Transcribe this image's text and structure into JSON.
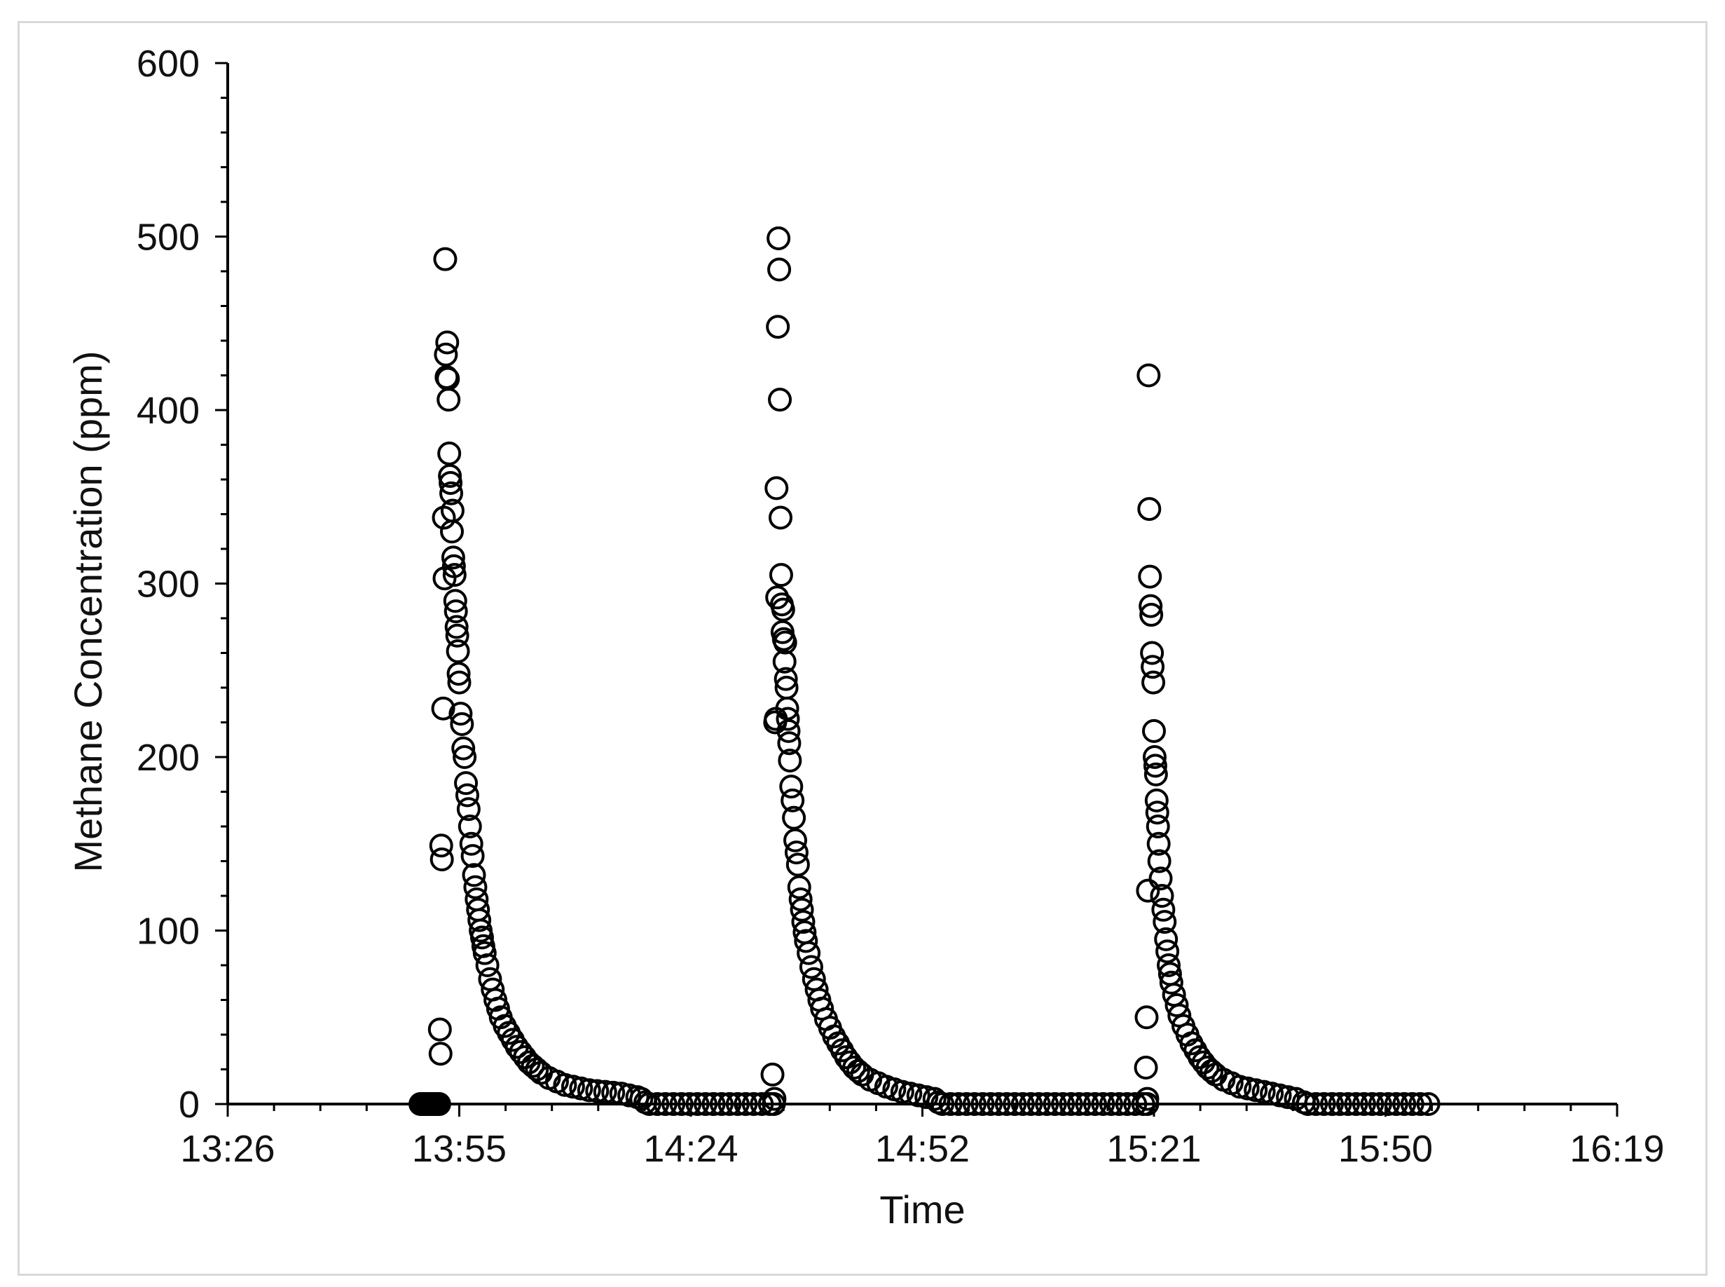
{
  "chart_data": {
    "type": "scatter",
    "title": "",
    "xlabel": "Time",
    "ylabel": "Methane Concentration (ppm)",
    "x_axis": {
      "min": "13:26",
      "max": "16:19",
      "ticks": [
        "13:26",
        "13:55",
        "14:24",
        "14:52",
        "15:21",
        "15:50",
        "16:19"
      ]
    },
    "y_axis": {
      "min": 0,
      "max": 600,
      "ticks": [
        0,
        100,
        200,
        300,
        400,
        500,
        600
      ]
    },
    "grid": false,
    "legend": "none",
    "marker": {
      "shape": "open-circle",
      "color": "#000000"
    },
    "series": [
      {
        "points": [
          [
            "13:50:00",
            0
          ],
          [
            "13:50:10",
            0
          ],
          [
            "13:50:20",
            0
          ],
          [
            "13:50:30",
            0
          ],
          [
            "13:50:40",
            0
          ],
          [
            "13:50:50",
            0
          ],
          [
            "13:51:00",
            0
          ],
          [
            "13:51:10",
            0
          ],
          [
            "13:51:20",
            0
          ],
          [
            "13:51:30",
            0
          ],
          [
            "13:51:40",
            0
          ],
          [
            "13:51:50",
            0
          ],
          [
            "13:52:00",
            0
          ],
          [
            "13:52:10",
            0
          ],
          [
            "13:52:20",
            0
          ],
          [
            "13:52:25",
            43
          ],
          [
            "13:52:30",
            29
          ],
          [
            "13:52:35",
            149
          ],
          [
            "13:52:40",
            141
          ],
          [
            "13:52:50",
            228
          ],
          [
            "13:52:55",
            338
          ],
          [
            "13:53:00",
            303
          ],
          [
            "13:53:05",
            487
          ],
          [
            "13:53:10",
            432
          ],
          [
            "13:53:15",
            419
          ],
          [
            "13:53:20",
            439
          ],
          [
            "13:53:25",
            418
          ],
          [
            "13:53:30",
            406
          ],
          [
            "13:53:35",
            375
          ],
          [
            "13:53:40",
            362
          ],
          [
            "13:53:45",
            358
          ],
          [
            "13:53:50",
            352
          ],
          [
            "13:53:55",
            330
          ],
          [
            "13:54:00",
            342
          ],
          [
            "13:54:05",
            315
          ],
          [
            "13:54:10",
            310
          ],
          [
            "13:54:15",
            305
          ],
          [
            "13:54:20",
            290
          ],
          [
            "13:54:25",
            284
          ],
          [
            "13:54:30",
            275
          ],
          [
            "13:54:35",
            270
          ],
          [
            "13:54:40",
            261
          ],
          [
            "13:54:45",
            248
          ],
          [
            "13:54:50",
            243
          ],
          [
            "13:55:00",
            225
          ],
          [
            "13:55:10",
            219
          ],
          [
            "13:55:20",
            205
          ],
          [
            "13:55:30",
            200
          ],
          [
            "13:55:40",
            185
          ],
          [
            "13:55:50",
            178
          ],
          [
            "13:56:00",
            170
          ],
          [
            "13:56:10",
            160
          ],
          [
            "13:56:20",
            150
          ],
          [
            "13:56:30",
            143
          ],
          [
            "13:56:40",
            132
          ],
          [
            "13:56:50",
            125
          ],
          [
            "13:57:00",
            118
          ],
          [
            "13:57:10",
            112
          ],
          [
            "13:57:20",
            106
          ],
          [
            "13:57:30",
            100
          ],
          [
            "13:57:40",
            96
          ],
          [
            "13:57:50",
            91
          ],
          [
            "13:58:00",
            87
          ],
          [
            "13:58:20",
            80
          ],
          [
            "13:58:40",
            72
          ],
          [
            "13:59:00",
            66
          ],
          [
            "13:59:20",
            60
          ],
          [
            "13:59:40",
            55
          ],
          [
            "14:00:00",
            50
          ],
          [
            "14:00:30",
            45
          ],
          [
            "14:01:00",
            41
          ],
          [
            "14:01:30",
            37
          ],
          [
            "14:02:00",
            33
          ],
          [
            "14:02:30",
            30
          ],
          [
            "14:03:00",
            27
          ],
          [
            "14:03:30",
            24
          ],
          [
            "14:04:00",
            22
          ],
          [
            "14:04:30",
            20
          ],
          [
            "14:05:00",
            18
          ],
          [
            "14:06:00",
            15
          ],
          [
            "14:07:00",
            13
          ],
          [
            "14:08:00",
            11
          ],
          [
            "14:09:00",
            10
          ],
          [
            "14:10:00",
            9
          ],
          [
            "14:11:00",
            8
          ],
          [
            "14:12:00",
            7.5
          ],
          [
            "14:13:00",
            7
          ],
          [
            "14:14:00",
            6.5
          ],
          [
            "14:15:00",
            6
          ],
          [
            "14:16:00",
            5
          ],
          [
            "14:17:00",
            4
          ],
          [
            "14:17:30",
            3
          ],
          [
            "14:18:00",
            1
          ],
          [
            "14:18:30",
            0
          ],
          [
            "14:19:30",
            0
          ],
          [
            "14:20:30",
            0
          ],
          [
            "14:21:30",
            0
          ],
          [
            "14:22:30",
            0
          ],
          [
            "14:23:30",
            0
          ],
          [
            "14:24:30",
            0
          ],
          [
            "14:25:30",
            0
          ],
          [
            "14:26:30",
            0
          ],
          [
            "14:27:30",
            0
          ],
          [
            "14:28:30",
            0
          ],
          [
            "14:29:30",
            0
          ],
          [
            "14:30:30",
            0
          ],
          [
            "14:31:30",
            0
          ],
          [
            "14:32:30",
            0
          ],
          [
            "14:33:30",
            0
          ],
          [
            "14:34:00",
            0
          ],
          [
            "14:33:50",
            17
          ],
          [
            "14:34:05",
            3
          ],
          [
            "14:34:10",
            220
          ],
          [
            "14:34:15",
            222
          ],
          [
            "14:34:20",
            355
          ],
          [
            "14:34:25",
            292
          ],
          [
            "14:34:30",
            448
          ],
          [
            "14:34:35",
            499
          ],
          [
            "14:34:40",
            481
          ],
          [
            "14:34:45",
            406
          ],
          [
            "14:34:50",
            338
          ],
          [
            "14:34:55",
            305
          ],
          [
            "14:35:00",
            288
          ],
          [
            "14:35:05",
            272
          ],
          [
            "14:35:10",
            285
          ],
          [
            "14:35:15",
            268
          ],
          [
            "14:35:20",
            255
          ],
          [
            "14:35:25",
            266
          ],
          [
            "14:35:30",
            245
          ],
          [
            "14:35:35",
            240
          ],
          [
            "14:35:40",
            228
          ],
          [
            "14:35:45",
            222
          ],
          [
            "14:35:50",
            215
          ],
          [
            "14:35:55",
            208
          ],
          [
            "14:36:00",
            198
          ],
          [
            "14:36:10",
            183
          ],
          [
            "14:36:20",
            175
          ],
          [
            "14:36:30",
            165
          ],
          [
            "14:36:40",
            152
          ],
          [
            "14:36:50",
            145
          ],
          [
            "14:37:00",
            138
          ],
          [
            "14:37:10",
            125
          ],
          [
            "14:37:20",
            118
          ],
          [
            "14:37:30",
            112
          ],
          [
            "14:37:40",
            105
          ],
          [
            "14:37:50",
            99
          ],
          [
            "14:38:00",
            94
          ],
          [
            "14:38:20",
            87
          ],
          [
            "14:38:40",
            79
          ],
          [
            "14:39:00",
            72
          ],
          [
            "14:39:20",
            66
          ],
          [
            "14:39:40",
            60
          ],
          [
            "14:40:00",
            55
          ],
          [
            "14:40:30",
            49
          ],
          [
            "14:41:00",
            44
          ],
          [
            "14:41:30",
            39
          ],
          [
            "14:42:00",
            35
          ],
          [
            "14:42:30",
            31
          ],
          [
            "14:43:00",
            27
          ],
          [
            "14:43:30",
            24
          ],
          [
            "14:44:00",
            21
          ],
          [
            "14:44:30",
            19
          ],
          [
            "14:45:00",
            17
          ],
          [
            "14:46:00",
            14
          ],
          [
            "14:47:00",
            12
          ],
          [
            "14:48:00",
            10
          ],
          [
            "14:49:00",
            8.5
          ],
          [
            "14:50:00",
            7
          ],
          [
            "14:51:00",
            6
          ],
          [
            "14:52:00",
            5
          ],
          [
            "14:53:00",
            4
          ],
          [
            "14:54:00",
            3
          ],
          [
            "14:54:30",
            1
          ],
          [
            "14:55:00",
            0
          ],
          [
            "14:56:00",
            0
          ],
          [
            "14:57:00",
            0
          ],
          [
            "14:58:00",
            0
          ],
          [
            "14:59:00",
            0
          ],
          [
            "15:00:00",
            0
          ],
          [
            "15:01:00",
            0
          ],
          [
            "15:02:00",
            0
          ],
          [
            "15:03:00",
            0
          ],
          [
            "15:04:00",
            0
          ],
          [
            "15:05:00",
            0
          ],
          [
            "15:06:00",
            0
          ],
          [
            "15:07:00",
            0
          ],
          [
            "15:08:00",
            0
          ],
          [
            "15:09:00",
            0
          ],
          [
            "15:10:00",
            0
          ],
          [
            "15:11:00",
            0
          ],
          [
            "15:12:00",
            0
          ],
          [
            "15:13:00",
            0
          ],
          [
            "15:14:00",
            0
          ],
          [
            "15:15:00",
            0
          ],
          [
            "15:16:00",
            0
          ],
          [
            "15:17:00",
            0
          ],
          [
            "15:18:00",
            0
          ],
          [
            "15:19:00",
            0
          ],
          [
            "15:20:00",
            0
          ],
          [
            "15:20:30",
            0
          ],
          [
            "15:20:20",
            21
          ],
          [
            "15:20:25",
            50
          ],
          [
            "15:20:30",
            3
          ],
          [
            "15:20:35",
            123
          ],
          [
            "15:20:40",
            420
          ],
          [
            "15:20:45",
            343
          ],
          [
            "15:20:50",
            304
          ],
          [
            "15:20:55",
            287
          ],
          [
            "15:21:00",
            282
          ],
          [
            "15:21:05",
            260
          ],
          [
            "15:21:10",
            252
          ],
          [
            "15:21:15",
            243
          ],
          [
            "15:21:20",
            215
          ],
          [
            "15:21:25",
            200
          ],
          [
            "15:21:30",
            195
          ],
          [
            "15:21:35",
            190
          ],
          [
            "15:21:40",
            175
          ],
          [
            "15:21:45",
            168
          ],
          [
            "15:21:50",
            160
          ],
          [
            "15:21:55",
            150
          ],
          [
            "15:22:00",
            140
          ],
          [
            "15:22:10",
            130
          ],
          [
            "15:22:20",
            120
          ],
          [
            "15:22:30",
            112
          ],
          [
            "15:22:40",
            105
          ],
          [
            "15:22:50",
            95
          ],
          [
            "15:23:00",
            88
          ],
          [
            "15:23:10",
            80
          ],
          [
            "15:23:20",
            75
          ],
          [
            "15:23:30",
            70
          ],
          [
            "15:23:50",
            63
          ],
          [
            "15:24:10",
            57
          ],
          [
            "15:24:30",
            51
          ],
          [
            "15:25:00",
            45
          ],
          [
            "15:25:30",
            40
          ],
          [
            "15:26:00",
            35
          ],
          [
            "15:26:30",
            31
          ],
          [
            "15:27:00",
            27
          ],
          [
            "15:27:30",
            24
          ],
          [
            "15:28:00",
            21
          ],
          [
            "15:28:30",
            19
          ],
          [
            "15:29:00",
            17
          ],
          [
            "15:30:00",
            14
          ],
          [
            "15:31:00",
            12
          ],
          [
            "15:32:00",
            10
          ],
          [
            "15:33:00",
            9
          ],
          [
            "15:34:00",
            8
          ],
          [
            "15:35:00",
            7
          ],
          [
            "15:36:00",
            6
          ],
          [
            "15:37:00",
            5
          ],
          [
            "15:38:00",
            4
          ],
          [
            "15:39:00",
            3
          ],
          [
            "15:40:00",
            1
          ],
          [
            "15:40:30",
            0
          ],
          [
            "15:41:30",
            0
          ],
          [
            "15:42:30",
            0
          ],
          [
            "15:43:30",
            0
          ],
          [
            "15:44:30",
            0
          ],
          [
            "15:45:30",
            0
          ],
          [
            "15:46:30",
            0
          ],
          [
            "15:47:30",
            0
          ],
          [
            "15:48:30",
            0
          ],
          [
            "15:49:30",
            0
          ],
          [
            "15:50:30",
            0
          ],
          [
            "15:51:30",
            0
          ],
          [
            "15:52:30",
            0
          ],
          [
            "15:53:30",
            0
          ],
          [
            "15:54:30",
            0
          ],
          [
            "15:55:30",
            0
          ]
        ]
      }
    ]
  }
}
